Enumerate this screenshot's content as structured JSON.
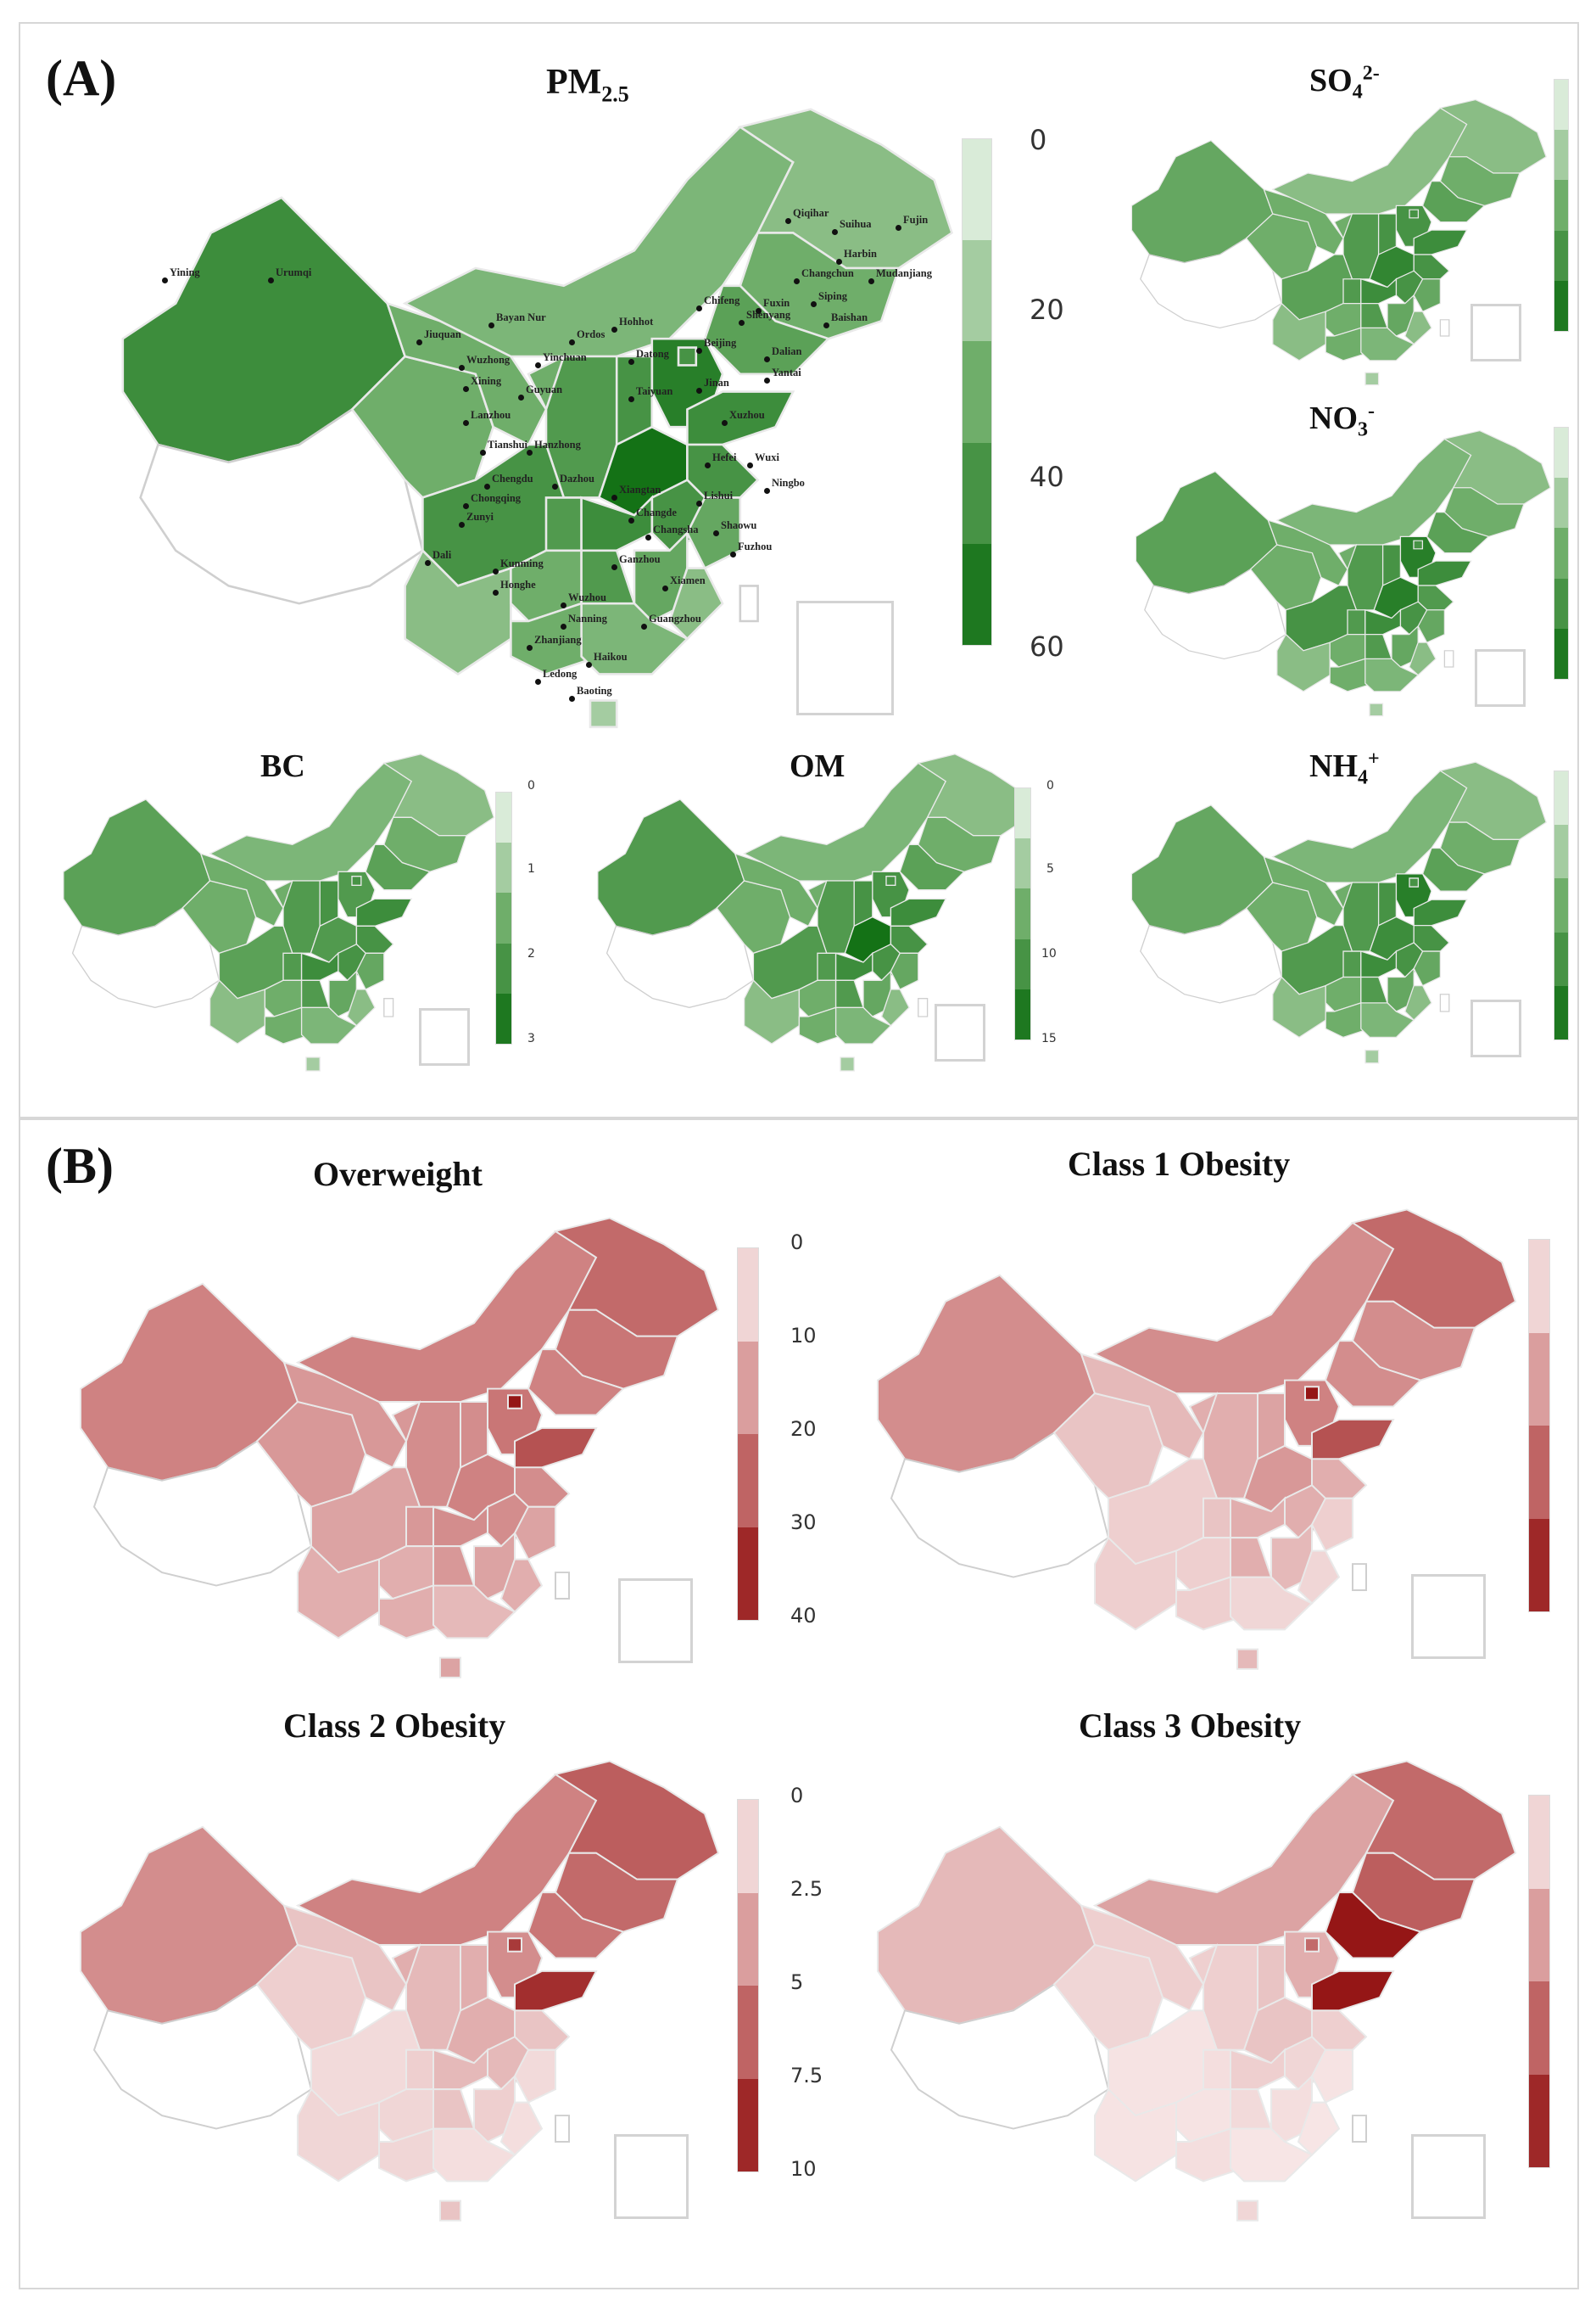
{
  "panel_a": {
    "label": "(A)",
    "pm25": {
      "title": "PM",
      "title_sub": "2.5",
      "ticks": [
        "0",
        "20",
        "40",
        "60"
      ],
      "cities": [
        {
          "name": "Yining"
        },
        {
          "name": "Urumqi"
        },
        {
          "name": "Qiqihar"
        },
        {
          "name": "Suihua"
        },
        {
          "name": "Fujin"
        },
        {
          "name": "Harbin"
        },
        {
          "name": "Changchun"
        },
        {
          "name": "Mudanjiang"
        },
        {
          "name": "Chifeng"
        },
        {
          "name": "Siping"
        },
        {
          "name": "Hohhot"
        },
        {
          "name": "Shenyang"
        },
        {
          "name": "Fuxin"
        },
        {
          "name": "Baishan"
        },
        {
          "name": "Bayan Nur"
        },
        {
          "name": "Jiuquan"
        },
        {
          "name": "Ordos"
        },
        {
          "name": "Beijing"
        },
        {
          "name": "Dalian"
        },
        {
          "name": "Wuzhong"
        },
        {
          "name": "Yinchuan"
        },
        {
          "name": "Datong"
        },
        {
          "name": "Yantai"
        },
        {
          "name": "Xining"
        },
        {
          "name": "Guyuan"
        },
        {
          "name": "Taiyuan"
        },
        {
          "name": "Jinan"
        },
        {
          "name": "Lanzhou"
        },
        {
          "name": "Tianshui"
        },
        {
          "name": "Xuzhou"
        },
        {
          "name": "Hanzhong"
        },
        {
          "name": "Hefei"
        },
        {
          "name": "Wuxi"
        },
        {
          "name": "Chengdu"
        },
        {
          "name": "Dazhou"
        },
        {
          "name": "Ningbo"
        },
        {
          "name": "Chongqing"
        },
        {
          "name": "Xiangtan"
        },
        {
          "name": "Lishui"
        },
        {
          "name": "Zunyi"
        },
        {
          "name": "Changde"
        },
        {
          "name": "Changsha"
        },
        {
          "name": "Shaowu"
        },
        {
          "name": "Fuzhou"
        },
        {
          "name": "Dali"
        },
        {
          "name": "Kunming"
        },
        {
          "name": "Ganzhou"
        },
        {
          "name": "Xiamen"
        },
        {
          "name": "Honghe"
        },
        {
          "name": "Wuzhou"
        },
        {
          "name": "Nanning"
        },
        {
          "name": "Guangzhou"
        },
        {
          "name": "Zhanjiang"
        },
        {
          "name": "Haikou"
        },
        {
          "name": "Ledong"
        },
        {
          "name": "Baoting"
        }
      ]
    },
    "so4": {
      "title": "SO",
      "title_sub": "4",
      "title_sup": "2-"
    },
    "no3": {
      "title": "NO",
      "title_sub": "3",
      "title_sup": "-"
    },
    "nh4": {
      "title": "NH",
      "title_sub": "4",
      "title_sup": "+"
    },
    "bc": {
      "title": "BC",
      "ticks": [
        "0",
        "1",
        "2",
        "3"
      ]
    },
    "om": {
      "title": "OM",
      "ticks": [
        "0",
        "5",
        "10",
        "15"
      ]
    }
  },
  "panel_b": {
    "label": "(B)",
    "overweight": {
      "title": "Overweight",
      "ticks": [
        "0",
        "10",
        "20",
        "30",
        "40"
      ]
    },
    "class1": {
      "title": "Class 1 Obesity"
    },
    "class2": {
      "title": "Class 2 Obesity",
      "ticks": [
        "0",
        "2.5",
        "5",
        "7.5",
        "10"
      ]
    },
    "class3": {
      "title": "Class 3 Obesity"
    }
  },
  "colors": {
    "green_light": "#f4faf3",
    "green_mid": "#6fae6a",
    "green_dark": "#0a6b0d",
    "red_light": "#fbf0f0",
    "red_mid": "#cf8282",
    "red_dark": "#8e0a0a",
    "border": "#d7d7d7"
  }
}
